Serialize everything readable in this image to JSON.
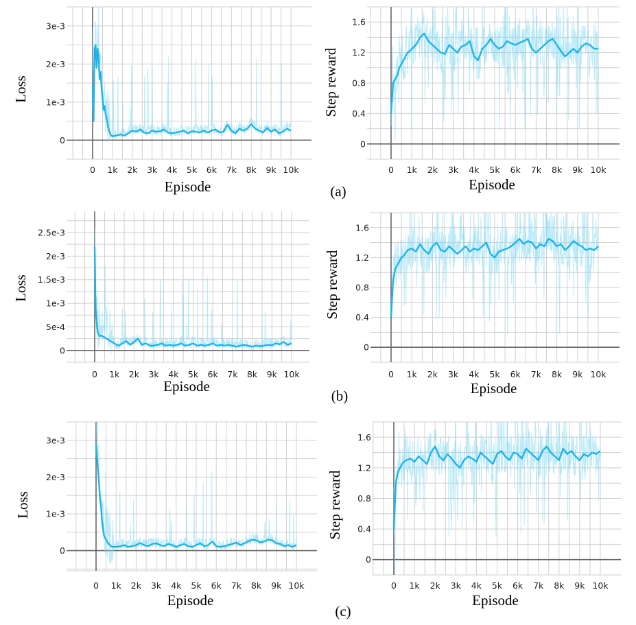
{
  "colors": {
    "smoothed": "#1cb4ea",
    "raw": "#7fd8f4",
    "grid": "#cfcfcf",
    "axis": "#666666"
  },
  "panel_labels": [
    "(a)",
    "(b)",
    "(c)"
  ],
  "chart_data": [
    {
      "type": "line",
      "panel": "(a)",
      "title": "",
      "xlabel": "Episode",
      "ylabel": "Loss",
      "xticks": [
        "0",
        "1k",
        "2k",
        "3k",
        "4k",
        "5k",
        "6k",
        "7k",
        "8k",
        "9k",
        "10k"
      ],
      "yticks": [
        {
          "v": 0,
          "t": "0"
        },
        {
          "v": 0.001,
          "t": "1e-3"
        },
        {
          "v": 0.002,
          "t": "2e-3"
        },
        {
          "v": 0.003,
          "t": "3e-3"
        }
      ],
      "xlim": [
        0,
        10000
      ],
      "ylim": [
        -0.0005,
        0.0035
      ],
      "series": [
        {
          "x": [
            0,
            50,
            100,
            150,
            200,
            250,
            300,
            350,
            400,
            450,
            500,
            550,
            600,
            650,
            700,
            800,
            900,
            1000,
            1200,
            1400,
            1600,
            1800,
            2000,
            2200,
            2400,
            2600,
            2800,
            3000,
            3200,
            3400,
            3600,
            3800,
            4000,
            4200,
            4400,
            4600,
            4800,
            5000,
            5200,
            5400,
            5600,
            5800,
            6000,
            6200,
            6400,
            6600,
            6800,
            7000,
            7200,
            7400,
            7600,
            7800,
            8000,
            8200,
            8400,
            8600,
            8800,
            9000,
            9200,
            9400,
            9600,
            9800,
            10000
          ],
          "y": [
            0.0014,
            0.0005,
            0.0024,
            0.0025,
            0.0019,
            0.0024,
            0.0022,
            0.0016,
            0.0018,
            0.0014,
            0.0011,
            0.0008,
            0.0009,
            0.0007,
            0.0006,
            0.0003,
            0.00015,
            0.0001,
            0.00012,
            0.00015,
            0.00012,
            0.00018,
            0.00025,
            0.00022,
            0.00028,
            0.0002,
            0.00018,
            0.00025,
            0.00022,
            0.00023,
            0.00028,
            0.0002,
            0.00018,
            0.0002,
            0.00022,
            0.00025,
            0.00018,
            0.00023,
            0.00022,
            0.0002,
            0.00025,
            0.0002,
            0.00025,
            0.00028,
            0.0002,
            0.00022,
            0.0004,
            0.00025,
            0.00018,
            0.0003,
            0.00025,
            0.0003,
            0.00042,
            0.0003,
            0.00025,
            0.0002,
            0.00032,
            0.00022,
            0.00028,
            0.00018,
            0.00022,
            0.0003,
            0.00025
          ]
        }
      ]
    },
    {
      "type": "line",
      "panel": "(a)",
      "title": "",
      "xlabel": "Episode",
      "ylabel": "Step reward",
      "xticks": [
        "0",
        "1k",
        "2k",
        "3k",
        "4k",
        "5k",
        "6k",
        "7k",
        "8k",
        "9k",
        "10k"
      ],
      "yticks": [
        {
          "v": 0,
          "t": "0"
        },
        {
          "v": 0.4,
          "t": "0.4"
        },
        {
          "v": 0.8,
          "t": "0.8"
        },
        {
          "v": 1.2,
          "t": "1.2"
        },
        {
          "v": 1.6,
          "t": "1.6"
        }
      ],
      "xlim": [
        0,
        10000
      ],
      "ylim": [
        -0.2,
        1.8
      ],
      "series": [
        {
          "x": [
            0,
            100,
            200,
            300,
            400,
            500,
            600,
            700,
            800,
            900,
            1000,
            1200,
            1400,
            1600,
            1800,
            2000,
            2200,
            2400,
            2600,
            2800,
            3000,
            3200,
            3400,
            3600,
            3800,
            4000,
            4200,
            4400,
            4600,
            4800,
            5000,
            5200,
            5400,
            5600,
            5800,
            6000,
            6200,
            6400,
            6600,
            6800,
            7000,
            7200,
            7400,
            7600,
            7800,
            8000,
            8200,
            8400,
            8600,
            8800,
            9000,
            9200,
            9400,
            9600,
            9800,
            10000
          ],
          "y": [
            0.4,
            0.8,
            0.85,
            0.9,
            1.0,
            1.05,
            1.1,
            1.15,
            1.2,
            1.22,
            1.25,
            1.3,
            1.4,
            1.45,
            1.35,
            1.3,
            1.25,
            1.2,
            1.18,
            1.3,
            1.25,
            1.2,
            1.28,
            1.3,
            1.35,
            1.15,
            1.1,
            1.25,
            1.3,
            1.38,
            1.3,
            1.25,
            1.28,
            1.35,
            1.32,
            1.3,
            1.33,
            1.35,
            1.38,
            1.25,
            1.2,
            1.25,
            1.3,
            1.35,
            1.38,
            1.3,
            1.22,
            1.15,
            1.2,
            1.25,
            1.2,
            1.28,
            1.32,
            1.3,
            1.25,
            1.25
          ]
        }
      ]
    },
    {
      "type": "line",
      "panel": "(b)",
      "title": "",
      "xlabel": "Episode",
      "ylabel": "Loss",
      "xticks": [
        "0",
        "1k",
        "2k",
        "3k",
        "4k",
        "5k",
        "6k",
        "7k",
        "8k",
        "9k",
        "10k"
      ],
      "yticks": [
        {
          "v": 0,
          "t": "0"
        },
        {
          "v": 0.0005,
          "t": "5e-4"
        },
        {
          "v": 0.001,
          "t": "1e-3"
        },
        {
          "v": 0.0015,
          "t": "1.5e-3"
        },
        {
          "v": 0.002,
          "t": "2e-3"
        },
        {
          "v": 0.0025,
          "t": "2.5e-3"
        }
      ],
      "xlim": [
        0,
        10000
      ],
      "ylim": [
        -0.00025,
        0.00295
      ],
      "series": [
        {
          "x": [
            0,
            50,
            100,
            150,
            200,
            250,
            300,
            400,
            500,
            600,
            800,
            1000,
            1200,
            1400,
            1600,
            1800,
            2000,
            2200,
            2400,
            2600,
            2800,
            3000,
            3200,
            3400,
            3600,
            3800,
            4000,
            4200,
            4400,
            4600,
            4800,
            5000,
            5200,
            5400,
            5600,
            5800,
            6000,
            6200,
            6400,
            6600,
            6800,
            7000,
            7200,
            7400,
            7600,
            7800,
            8000,
            8200,
            8400,
            8600,
            8800,
            9000,
            9200,
            9400,
            9600,
            9800,
            10000
          ],
          "y": [
            0.0022,
            0.0009,
            0.0006,
            0.0004,
            0.00035,
            0.0003,
            0.00032,
            0.0003,
            0.00028,
            0.00025,
            0.0002,
            0.00015,
            0.0001,
            0.00015,
            0.0002,
            0.00012,
            0.00018,
            0.00025,
            0.00012,
            0.00015,
            0.0001,
            0.0001,
            0.00012,
            0.00015,
            0.0001,
            0.00012,
            0.0001,
            0.00012,
            0.00015,
            0.0001,
            0.00012,
            0.00015,
            0.0001,
            0.00012,
            0.0001,
            0.00012,
            0.00015,
            0.0001,
            0.00012,
            0.0001,
            0.00012,
            0.0001,
            8e-05,
            0.0001,
            0.00012,
            0.0001,
            8e-05,
            0.0001,
            9e-05,
            0.0001,
            0.00012,
            0.00011,
            0.00015,
            0.00013,
            0.00018,
            0.00012,
            0.00015
          ]
        }
      ]
    },
    {
      "type": "line",
      "panel": "(b)",
      "title": "",
      "xlabel": "Episode",
      "ylabel": "Step reward",
      "xticks": [
        "0",
        "1k",
        "2k",
        "3k",
        "4k",
        "5k",
        "6k",
        "7k",
        "8k",
        "9k",
        "10k"
      ],
      "yticks": [
        {
          "v": 0,
          "t": "0"
        },
        {
          "v": 0.4,
          "t": "0.4"
        },
        {
          "v": 0.8,
          "t": "0.8"
        },
        {
          "v": 1.2,
          "t": "1.2"
        },
        {
          "v": 1.6,
          "t": "1.6"
        }
      ],
      "xlim": [
        0,
        10000
      ],
      "ylim": [
        -0.2,
        1.8
      ],
      "series": [
        {
          "x": [
            0,
            100,
            200,
            300,
            400,
            500,
            600,
            800,
            1000,
            1200,
            1400,
            1600,
            1800,
            2000,
            2200,
            2400,
            2600,
            2800,
            3000,
            3200,
            3400,
            3600,
            3800,
            4000,
            4200,
            4400,
            4600,
            4800,
            5000,
            5200,
            5400,
            5600,
            5800,
            6000,
            6200,
            6400,
            6600,
            6800,
            7000,
            7200,
            7400,
            7600,
            7800,
            8000,
            8200,
            8400,
            8600,
            8800,
            9000,
            9200,
            9400,
            9600,
            9800,
            10000
          ],
          "y": [
            0.4,
            0.9,
            1.05,
            1.1,
            1.15,
            1.2,
            1.22,
            1.3,
            1.32,
            1.28,
            1.38,
            1.3,
            1.25,
            1.35,
            1.4,
            1.3,
            1.28,
            1.35,
            1.3,
            1.25,
            1.3,
            1.35,
            1.28,
            1.32,
            1.3,
            1.35,
            1.4,
            1.25,
            1.2,
            1.28,
            1.3,
            1.32,
            1.35,
            1.4,
            1.45,
            1.38,
            1.42,
            1.4,
            1.32,
            1.38,
            1.35,
            1.45,
            1.42,
            1.35,
            1.38,
            1.3,
            1.35,
            1.42,
            1.38,
            1.35,
            1.3,
            1.32,
            1.3,
            1.35
          ]
        }
      ]
    },
    {
      "type": "line",
      "panel": "(c)",
      "title": "",
      "xlabel": "Episode",
      "ylabel": "Loss",
      "xticks": [
        "0",
        "1k",
        "2k",
        "3k",
        "4k",
        "5k",
        "6k",
        "7k",
        "8k",
        "9k",
        "10k"
      ],
      "yticks": [
        {
          "v": 0,
          "t": "0"
        },
        {
          "v": 0.001,
          "t": "1e-3"
        },
        {
          "v": 0.002,
          "t": "2e-3"
        },
        {
          "v": 0.003,
          "t": "3e-3"
        }
      ],
      "xlim": [
        0,
        10000
      ],
      "ylim": [
        -0.00055,
        0.0035
      ],
      "series": [
        {
          "x": [
            0,
            50,
            100,
            150,
            200,
            250,
            300,
            350,
            400,
            500,
            600,
            700,
            800,
            1000,
            1200,
            1400,
            1600,
            1800,
            2000,
            2200,
            2400,
            2600,
            2800,
            3000,
            3200,
            3400,
            3600,
            3800,
            4000,
            4200,
            4400,
            4600,
            4800,
            5000,
            5200,
            5400,
            5600,
            5800,
            6000,
            6200,
            6400,
            6600,
            6800,
            7000,
            7200,
            7400,
            7600,
            7800,
            8000,
            8200,
            8400,
            8600,
            8800,
            9000,
            9200,
            9400,
            9600,
            9800,
            10000
          ],
          "y": [
            0.0029,
            0.0025,
            0.0022,
            0.0018,
            0.0014,
            0.0012,
            0.0008,
            0.0006,
            0.0004,
            0.0003,
            0.0002,
            0.00015,
            0.0001,
            0.0001,
            0.00012,
            0.00015,
            0.0001,
            0.00012,
            0.00015,
            0.0002,
            0.00015,
            0.00012,
            0.00018,
            0.0002,
            0.00015,
            0.00012,
            0.00018,
            0.00015,
            0.0001,
            0.00015,
            0.00018,
            0.00012,
            0.0001,
            0.00015,
            0.0002,
            0.00012,
            0.00015,
            0.00025,
            0.00012,
            0.0001,
            0.00012,
            0.00015,
            0.00018,
            0.00022,
            0.00015,
            0.0002,
            0.00025,
            0.0003,
            0.00028,
            0.00022,
            0.00025,
            0.0003,
            0.00028,
            0.0002,
            0.00018,
            0.00012,
            0.00015,
            0.0001,
            0.00015
          ]
        }
      ]
    },
    {
      "type": "line",
      "panel": "(c)",
      "title": "",
      "xlabel": "Episode",
      "ylabel": "Step reward",
      "xticks": [
        "0",
        "1k",
        "2k",
        "3k",
        "4k",
        "5k",
        "6k",
        "7k",
        "8k",
        "9k",
        "10k"
      ],
      "yticks": [
        {
          "v": 0,
          "t": "0"
        },
        {
          "v": 0.4,
          "t": "0.4"
        },
        {
          "v": 0.8,
          "t": "0.8"
        },
        {
          "v": 1.2,
          "t": "1.2"
        },
        {
          "v": 1.6,
          "t": "1.6"
        }
      ],
      "xlim": [
        0,
        10000
      ],
      "ylim": [
        -0.2,
        1.8
      ],
      "series": [
        {
          "x": [
            0,
            100,
            200,
            300,
            400,
            500,
            600,
            800,
            1000,
            1200,
            1400,
            1600,
            1800,
            2000,
            2200,
            2400,
            2600,
            2800,
            3000,
            3200,
            3400,
            3600,
            3800,
            4000,
            4200,
            4400,
            4600,
            4800,
            5000,
            5200,
            5400,
            5600,
            5800,
            6000,
            6200,
            6400,
            6600,
            6800,
            7000,
            7200,
            7400,
            7600,
            7800,
            8000,
            8200,
            8400,
            8600,
            8800,
            9000,
            9200,
            9400,
            9600,
            9800,
            10000
          ],
          "y": [
            0.4,
            1.0,
            1.15,
            1.2,
            1.25,
            1.28,
            1.3,
            1.32,
            1.28,
            1.35,
            1.3,
            1.25,
            1.4,
            1.48,
            1.35,
            1.3,
            1.38,
            1.32,
            1.25,
            1.2,
            1.3,
            1.35,
            1.32,
            1.28,
            1.4,
            1.35,
            1.3,
            1.25,
            1.38,
            1.42,
            1.35,
            1.3,
            1.4,
            1.38,
            1.32,
            1.45,
            1.4,
            1.35,
            1.3,
            1.42,
            1.48,
            1.4,
            1.35,
            1.3,
            1.45,
            1.38,
            1.42,
            1.35,
            1.3,
            1.38,
            1.35,
            1.4,
            1.38,
            1.42
          ]
        }
      ]
    }
  ]
}
